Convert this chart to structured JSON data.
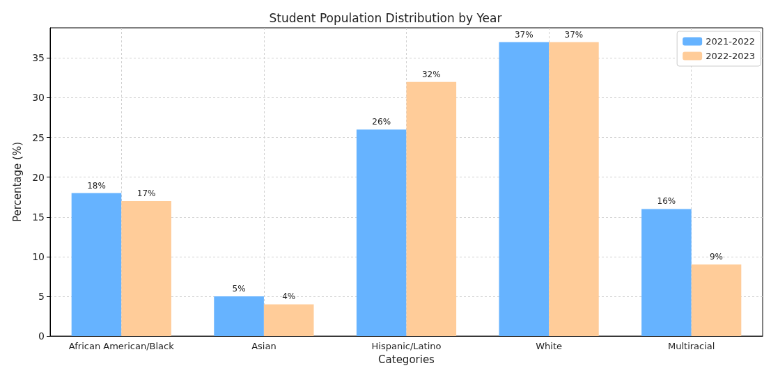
{
  "chart_data": {
    "type": "bar",
    "title": "Student Population Distribution by Year",
    "xlabel": "Categories",
    "ylabel": "Percentage (%)",
    "categories": [
      "African American/Black",
      "Asian",
      "Hispanic/Latino",
      "White",
      "Multiracial"
    ],
    "series": [
      {
        "name": "2021-2022",
        "color": "#66b3ff",
        "values": [
          18,
          5,
          26,
          37,
          16
        ],
        "value_labels": [
          "18%",
          "5%",
          "26%",
          "37%",
          "16%"
        ]
      },
      {
        "name": "2022-2023",
        "color": "#ffcc99",
        "values": [
          17,
          4,
          32,
          37,
          9
        ],
        "value_labels": [
          "17%",
          "4%",
          "32%",
          "37%",
          "9%"
        ]
      }
    ],
    "ylim": [
      0,
      38.8
    ],
    "yticks": [
      0,
      5,
      10,
      15,
      20,
      25,
      30,
      35
    ],
    "grid": true,
    "legend": "top right"
  }
}
